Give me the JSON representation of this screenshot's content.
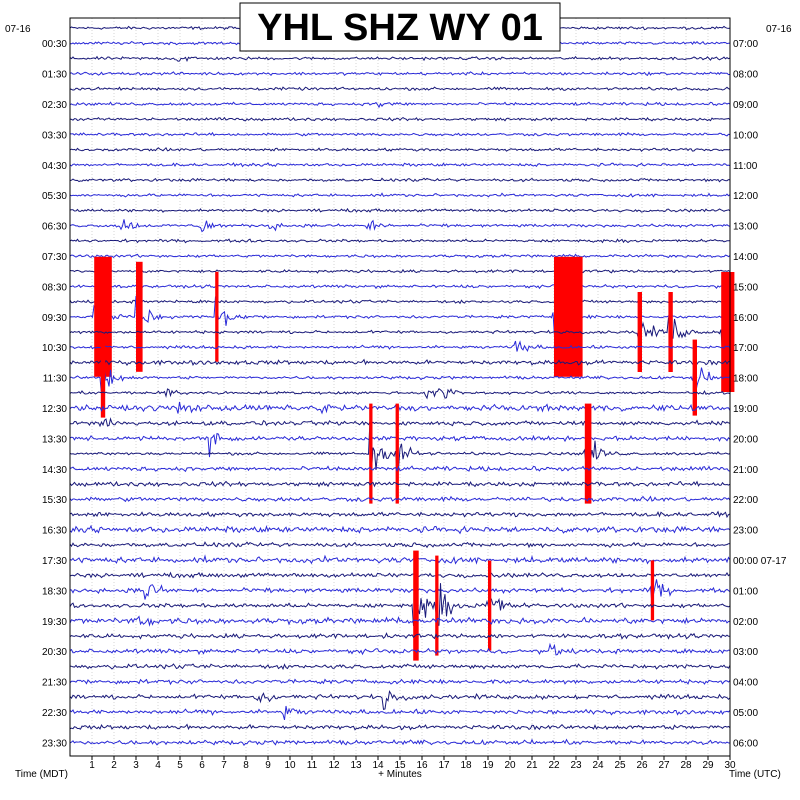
{
  "chart_data": {
    "type": "helicorder",
    "title": "YHL SHZ WY 01",
    "date_left": "07-16",
    "date_right": "07-16",
    "xlabel": "+ Minutes",
    "left_axis_label": "Time (MDT)",
    "right_axis_label": "Time (UTC)",
    "x_range": [
      0,
      30
    ],
    "x_ticks": [
      "1",
      "2",
      "3",
      "4",
      "5",
      "6",
      "7",
      "8",
      "9",
      "10",
      "11",
      "12",
      "13",
      "14",
      "15",
      "16",
      "17",
      "18",
      "19",
      "20",
      "21",
      "22",
      "23",
      "24",
      "25",
      "26",
      "27",
      "28",
      "29",
      "30"
    ],
    "left_times": [
      "00:30",
      "01:30",
      "02:30",
      "03:30",
      "04:30",
      "05:30",
      "06:30",
      "07:30",
      "08:30",
      "09:30",
      "10:30",
      "11:30",
      "12:30",
      "13:30",
      "14:30",
      "15:30",
      "16:30",
      "17:30",
      "18:30",
      "19:30",
      "20:30",
      "21:30",
      "22:30",
      "23:30"
    ],
    "right_times": [
      "07:00",
      "08:00",
      "09:00",
      "10:00",
      "11:00",
      "12:00",
      "13:00",
      "14:00",
      "15:00",
      "16:00",
      "17:00",
      "18:00",
      "19:00",
      "20:00",
      "21:00",
      "22:00",
      "23:00",
      "00:00 07-17",
      "01:00",
      "02:00",
      "03:00",
      "04:00",
      "05:00",
      "06:00"
    ],
    "trace_count": 48,
    "trace_colors": [
      "#1a1a7a",
      "#2a2ad8"
    ],
    "clip_color": "#ff0000",
    "grid": true,
    "noise_level": [
      2,
      2,
      2,
      2,
      2,
      2,
      2,
      2,
      2,
      2,
      2,
      2,
      2,
      2,
      2,
      2,
      2,
      2,
      2,
      2,
      2,
      2,
      3,
      2,
      2,
      4,
      3,
      3,
      2,
      3,
      3,
      3,
      3,
      4,
      3,
      4,
      3,
      3,
      3,
      4,
      3,
      3,
      3,
      3,
      3,
      3,
      3,
      3
    ],
    "events": [
      {
        "trace": 2,
        "minute": 4.8,
        "amplitude": 10
      },
      {
        "trace": 5,
        "minute": 13.9,
        "amplitude": 8
      },
      {
        "trace": 13,
        "minute": 2.3,
        "amplitude": 18
      },
      {
        "trace": 13,
        "minute": 5.9,
        "amplitude": 18
      },
      {
        "trace": 13,
        "minute": 13.4,
        "amplitude": 16
      },
      {
        "trace": 13,
        "minute": 9.0,
        "amplitude": 8
      },
      {
        "trace": 19,
        "minute": 1.1,
        "amplitude": 60,
        "clipped": true,
        "clip_min_duration": 0.8
      },
      {
        "trace": 19,
        "minute": 3.0,
        "amplitude": 55,
        "clipped": true,
        "clip_min_duration": 0.3
      },
      {
        "trace": 19,
        "minute": 6.6,
        "amplitude": 45,
        "clipped": true,
        "clip_min_duration": 0.15
      },
      {
        "trace": 19,
        "minute": 22.0,
        "amplitude": 60,
        "clipped": true,
        "clip_min_duration": 1.3
      },
      {
        "trace": 20,
        "minute": 25.8,
        "amplitude": 40,
        "clipped": true,
        "clip_min_duration": 0.2
      },
      {
        "trace": 20,
        "minute": 27.2,
        "amplitude": 40,
        "clipped": true,
        "clip_min_duration": 0.2
      },
      {
        "trace": 20,
        "minute": 29.6,
        "amplitude": 60,
        "clipped": true,
        "clip_min_duration": 0.6
      },
      {
        "trace": 21,
        "minute": 20.2,
        "amplitude": 18
      },
      {
        "trace": 23,
        "minute": 1.4,
        "amplitude": 40,
        "clipped": true,
        "clip_min_duration": 0.2
      },
      {
        "trace": 23,
        "minute": 28.3,
        "amplitude": 38,
        "clipped": true,
        "clip_min_duration": 0.2
      },
      {
        "trace": 24,
        "minute": 4.3,
        "amplitude": 15
      },
      {
        "trace": 24,
        "minute": 16.1,
        "amplitude": 18
      },
      {
        "trace": 24,
        "minute": 16.8,
        "amplitude": 15
      },
      {
        "trace": 25,
        "minute": 11.3,
        "amplitude": 14
      },
      {
        "trace": 25,
        "minute": 4.9,
        "amplitude": 12
      },
      {
        "trace": 28,
        "minute": 13.6,
        "amplitude": 50,
        "clipped": true,
        "clip_min_duration": 0.15
      },
      {
        "trace": 28,
        "minute": 14.8,
        "amplitude": 50,
        "clipped": true,
        "clip_min_duration": 0.15
      },
      {
        "trace": 28,
        "minute": 23.4,
        "amplitude": 50,
        "clipped": true,
        "clip_min_duration": 0.3
      },
      {
        "trace": 27,
        "minute": 6.3,
        "amplitude": 20
      },
      {
        "trace": 26,
        "minute": 1.3,
        "amplitude": 16
      },
      {
        "trace": 37,
        "minute": 26.4,
        "amplitude": 30,
        "clipped": true,
        "clip_min_duration": 0.15
      },
      {
        "trace": 37,
        "minute": 3.4,
        "amplitude": 25
      },
      {
        "trace": 38,
        "minute": 15.6,
        "amplitude": 55,
        "clipped": true,
        "clip_min_duration": 0.25
      },
      {
        "trace": 38,
        "minute": 16.6,
        "amplitude": 50,
        "clipped": true,
        "clip_min_duration": 0.15
      },
      {
        "trace": 38,
        "minute": 19.0,
        "amplitude": 45,
        "clipped": true,
        "clip_min_duration": 0.15
      },
      {
        "trace": 39,
        "minute": 3.0,
        "amplitude": 18
      },
      {
        "trace": 41,
        "minute": 21.8,
        "amplitude": 10
      },
      {
        "trace": 44,
        "minute": 8.4,
        "amplitude": 22
      },
      {
        "trace": 44,
        "minute": 14.2,
        "amplitude": 22
      },
      {
        "trace": 45,
        "minute": 9.7,
        "amplitude": 14
      }
    ]
  }
}
